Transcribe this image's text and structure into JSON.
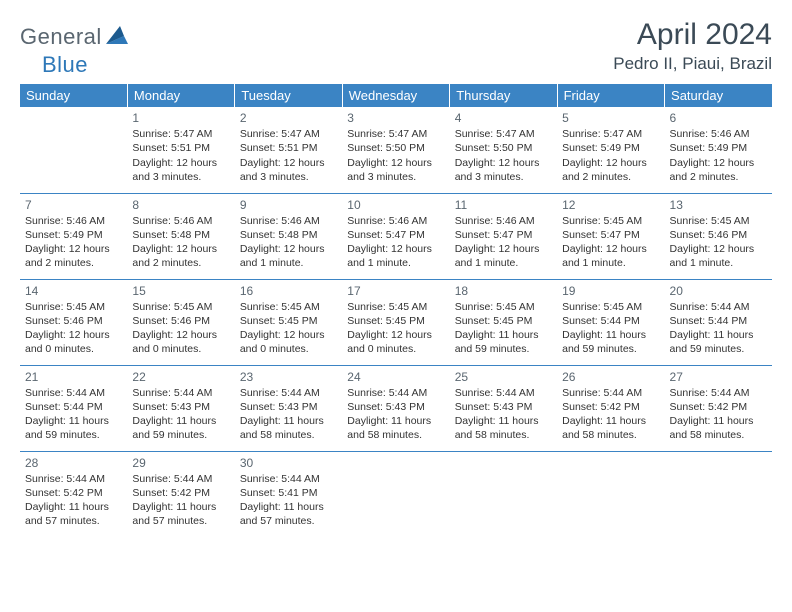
{
  "logo": {
    "part1": "General",
    "part2": "Blue"
  },
  "title": "April 2024",
  "location": "Pedro II, Piaui, Brazil",
  "colors": {
    "header_bg": "#3b84c4",
    "header_text": "#ffffff",
    "border": "#3b84c4",
    "logo_gray": "#5a6670",
    "logo_blue": "#2e78b8",
    "title_color": "#3b4a56"
  },
  "day_names": [
    "Sunday",
    "Monday",
    "Tuesday",
    "Wednesday",
    "Thursday",
    "Friday",
    "Saturday"
  ],
  "weeks": [
    [
      {
        "num": "",
        "sunrise": "",
        "sunset": "",
        "daylight": ""
      },
      {
        "num": "1",
        "sunrise": "Sunrise: 5:47 AM",
        "sunset": "Sunset: 5:51 PM",
        "daylight": "Daylight: 12 hours and 3 minutes."
      },
      {
        "num": "2",
        "sunrise": "Sunrise: 5:47 AM",
        "sunset": "Sunset: 5:51 PM",
        "daylight": "Daylight: 12 hours and 3 minutes."
      },
      {
        "num": "3",
        "sunrise": "Sunrise: 5:47 AM",
        "sunset": "Sunset: 5:50 PM",
        "daylight": "Daylight: 12 hours and 3 minutes."
      },
      {
        "num": "4",
        "sunrise": "Sunrise: 5:47 AM",
        "sunset": "Sunset: 5:50 PM",
        "daylight": "Daylight: 12 hours and 3 minutes."
      },
      {
        "num": "5",
        "sunrise": "Sunrise: 5:47 AM",
        "sunset": "Sunset: 5:49 PM",
        "daylight": "Daylight: 12 hours and 2 minutes."
      },
      {
        "num": "6",
        "sunrise": "Sunrise: 5:46 AM",
        "sunset": "Sunset: 5:49 PM",
        "daylight": "Daylight: 12 hours and 2 minutes."
      }
    ],
    [
      {
        "num": "7",
        "sunrise": "Sunrise: 5:46 AM",
        "sunset": "Sunset: 5:49 PM",
        "daylight": "Daylight: 12 hours and 2 minutes."
      },
      {
        "num": "8",
        "sunrise": "Sunrise: 5:46 AM",
        "sunset": "Sunset: 5:48 PM",
        "daylight": "Daylight: 12 hours and 2 minutes."
      },
      {
        "num": "9",
        "sunrise": "Sunrise: 5:46 AM",
        "sunset": "Sunset: 5:48 PM",
        "daylight": "Daylight: 12 hours and 1 minute."
      },
      {
        "num": "10",
        "sunrise": "Sunrise: 5:46 AM",
        "sunset": "Sunset: 5:47 PM",
        "daylight": "Daylight: 12 hours and 1 minute."
      },
      {
        "num": "11",
        "sunrise": "Sunrise: 5:46 AM",
        "sunset": "Sunset: 5:47 PM",
        "daylight": "Daylight: 12 hours and 1 minute."
      },
      {
        "num": "12",
        "sunrise": "Sunrise: 5:45 AM",
        "sunset": "Sunset: 5:47 PM",
        "daylight": "Daylight: 12 hours and 1 minute."
      },
      {
        "num": "13",
        "sunrise": "Sunrise: 5:45 AM",
        "sunset": "Sunset: 5:46 PM",
        "daylight": "Daylight: 12 hours and 1 minute."
      }
    ],
    [
      {
        "num": "14",
        "sunrise": "Sunrise: 5:45 AM",
        "sunset": "Sunset: 5:46 PM",
        "daylight": "Daylight: 12 hours and 0 minutes."
      },
      {
        "num": "15",
        "sunrise": "Sunrise: 5:45 AM",
        "sunset": "Sunset: 5:46 PM",
        "daylight": "Daylight: 12 hours and 0 minutes."
      },
      {
        "num": "16",
        "sunrise": "Sunrise: 5:45 AM",
        "sunset": "Sunset: 5:45 PM",
        "daylight": "Daylight: 12 hours and 0 minutes."
      },
      {
        "num": "17",
        "sunrise": "Sunrise: 5:45 AM",
        "sunset": "Sunset: 5:45 PM",
        "daylight": "Daylight: 12 hours and 0 minutes."
      },
      {
        "num": "18",
        "sunrise": "Sunrise: 5:45 AM",
        "sunset": "Sunset: 5:45 PM",
        "daylight": "Daylight: 11 hours and 59 minutes."
      },
      {
        "num": "19",
        "sunrise": "Sunrise: 5:45 AM",
        "sunset": "Sunset: 5:44 PM",
        "daylight": "Daylight: 11 hours and 59 minutes."
      },
      {
        "num": "20",
        "sunrise": "Sunrise: 5:44 AM",
        "sunset": "Sunset: 5:44 PM",
        "daylight": "Daylight: 11 hours and 59 minutes."
      }
    ],
    [
      {
        "num": "21",
        "sunrise": "Sunrise: 5:44 AM",
        "sunset": "Sunset: 5:44 PM",
        "daylight": "Daylight: 11 hours and 59 minutes."
      },
      {
        "num": "22",
        "sunrise": "Sunrise: 5:44 AM",
        "sunset": "Sunset: 5:43 PM",
        "daylight": "Daylight: 11 hours and 59 minutes."
      },
      {
        "num": "23",
        "sunrise": "Sunrise: 5:44 AM",
        "sunset": "Sunset: 5:43 PM",
        "daylight": "Daylight: 11 hours and 58 minutes."
      },
      {
        "num": "24",
        "sunrise": "Sunrise: 5:44 AM",
        "sunset": "Sunset: 5:43 PM",
        "daylight": "Daylight: 11 hours and 58 minutes."
      },
      {
        "num": "25",
        "sunrise": "Sunrise: 5:44 AM",
        "sunset": "Sunset: 5:43 PM",
        "daylight": "Daylight: 11 hours and 58 minutes."
      },
      {
        "num": "26",
        "sunrise": "Sunrise: 5:44 AM",
        "sunset": "Sunset: 5:42 PM",
        "daylight": "Daylight: 11 hours and 58 minutes."
      },
      {
        "num": "27",
        "sunrise": "Sunrise: 5:44 AM",
        "sunset": "Sunset: 5:42 PM",
        "daylight": "Daylight: 11 hours and 58 minutes."
      }
    ],
    [
      {
        "num": "28",
        "sunrise": "Sunrise: 5:44 AM",
        "sunset": "Sunset: 5:42 PM",
        "daylight": "Daylight: 11 hours and 57 minutes."
      },
      {
        "num": "29",
        "sunrise": "Sunrise: 5:44 AM",
        "sunset": "Sunset: 5:42 PM",
        "daylight": "Daylight: 11 hours and 57 minutes."
      },
      {
        "num": "30",
        "sunrise": "Sunrise: 5:44 AM",
        "sunset": "Sunset: 5:41 PM",
        "daylight": "Daylight: 11 hours and 57 minutes."
      },
      {
        "num": "",
        "sunrise": "",
        "sunset": "",
        "daylight": ""
      },
      {
        "num": "",
        "sunrise": "",
        "sunset": "",
        "daylight": ""
      },
      {
        "num": "",
        "sunrise": "",
        "sunset": "",
        "daylight": ""
      },
      {
        "num": "",
        "sunrise": "",
        "sunset": "",
        "daylight": ""
      }
    ]
  ]
}
